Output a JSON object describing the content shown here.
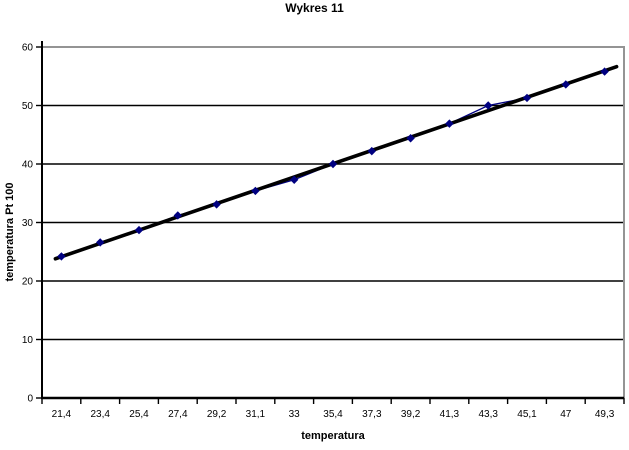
{
  "chart_data": {
    "type": "line",
    "title": "Wykres 11",
    "xlabel": "temperatura",
    "ylabel": "temperatura Pt 100",
    "categories": [
      "21,4",
      "23,4",
      "25,4",
      "27,4",
      "29,2",
      "31,1",
      "33",
      "35,4",
      "37,3",
      "39,2",
      "41,3",
      "43,3",
      "45,1",
      "47",
      "49,3"
    ],
    "series": [
      {
        "name": "temperatura Pt 100",
        "marker": "diamond",
        "values": [
          24.2,
          26.6,
          28.7,
          31.2,
          33.1,
          35.4,
          37.3,
          40.0,
          42.2,
          44.4,
          46.9,
          50.0,
          51.3,
          53.6,
          55.8
        ]
      },
      {
        "name": "linia trendu",
        "type": "linear-trend"
      }
    ],
    "y_ticks": [
      0,
      10,
      20,
      30,
      40,
      50,
      60
    ],
    "ylim": [
      0,
      60
    ],
    "grid": "horizontal",
    "legend": "none",
    "colors": {
      "series_line": "#000080",
      "marker": "#000080",
      "trendline": "#000000",
      "gridline": "#000000",
      "axis": "#000000",
      "plot_border_gray": "#949494",
      "plot_background": "#ffffff",
      "text": "#000000"
    }
  }
}
